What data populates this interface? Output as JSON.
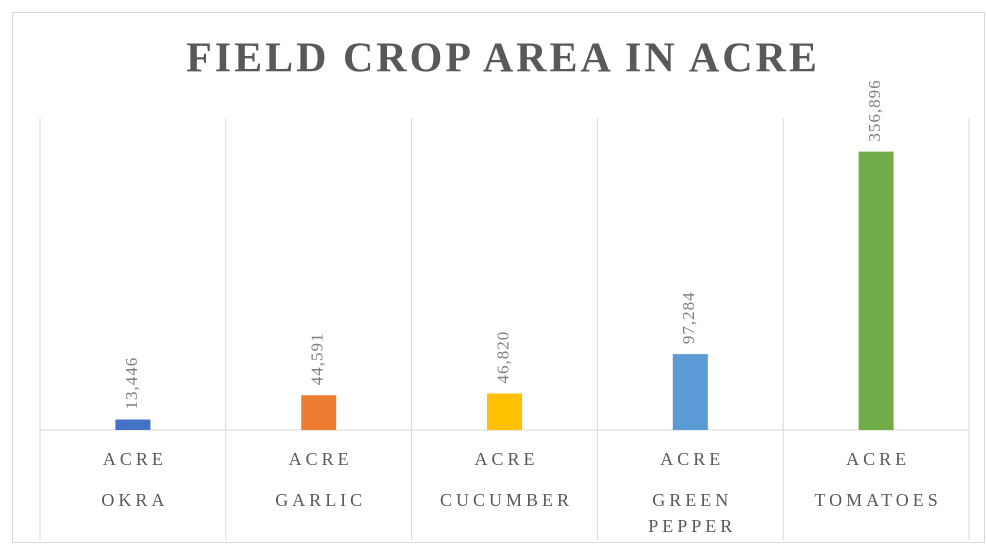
{
  "chart_data": {
    "type": "bar",
    "title": "FIELD CROP AREA IN ACRE",
    "categories": [
      "OKRA",
      "GARLIC",
      "CUCUMBER",
      "GREEN PEPPER",
      "TOMATOES"
    ],
    "category_groups": [
      "ACRE",
      "ACRE",
      "ACRE",
      "ACRE",
      "ACRE"
    ],
    "values": [
      13446,
      44591,
      46820,
      97284,
      356896
    ],
    "value_labels": [
      "13,446",
      "44,591",
      "46,820",
      "97,284",
      "356,896"
    ],
    "colors": [
      "#4472c4",
      "#ed7d31",
      "#ffc000",
      "#5b9bd5",
      "#70ad47"
    ],
    "ylim": [
      0,
      400000
    ]
  }
}
